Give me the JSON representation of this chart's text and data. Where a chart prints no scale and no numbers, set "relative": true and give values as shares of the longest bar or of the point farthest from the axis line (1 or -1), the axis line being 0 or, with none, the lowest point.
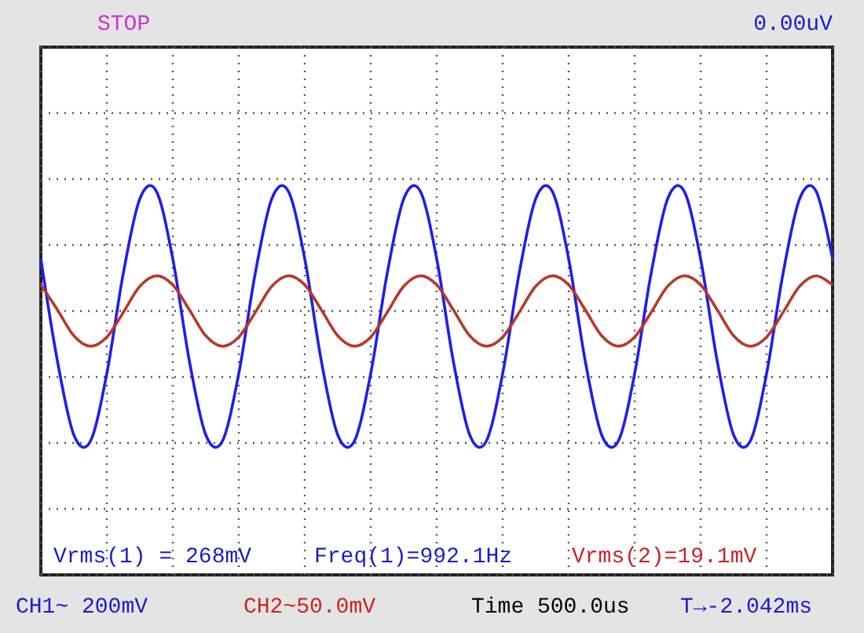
{
  "chart_data": {
    "type": "line",
    "relative": true,
    "grid": true,
    "marker": "none",
    "line_style": "solid",
    "categories": [
      null,
      null,
      null,
      null,
      null,
      null,
      null,
      null,
      null,
      null,
      null,
      null,
      null,
      null,
      null,
      null,
      null,
      null,
      null,
      null,
      null,
      null,
      null,
      null,
      null,
      null,
      null,
      null,
      null,
      null,
      null,
      null,
      null,
      null,
      null,
      null,
      null,
      null,
      null,
      null,
      null,
      null,
      null,
      null,
      null,
      null,
      null,
      null,
      null
    ],
    "series": [
      {
        "color": "#1f1fe8",
        "values": [
          0.4,
          -0.38,
          -0.95,
          -1,
          -0.48,
          0.29,
          0.86,
          0.92,
          0.4,
          -0.38,
          -0.95,
          -1,
          -0.48,
          0.29,
          0.86,
          0.92,
          0.4,
          -0.38,
          -0.95,
          -1,
          -0.48,
          0.29,
          0.86,
          0.92,
          0.4,
          -0.38,
          -0.95,
          -1,
          -0.48,
          0.29,
          0.86,
          0.92,
          0.4,
          -0.38,
          -0.95,
          -1,
          -0.48,
          0.29,
          0.86,
          0.92,
          0.4,
          -0.38,
          -0.95,
          -1,
          -0.48,
          0.29,
          0.86,
          0.92,
          0.4
        ]
      },
      {
        "color": "#b8382a",
        "values": [
          0.2,
          0.01,
          -0.19,
          -0.27,
          -0.2,
          -0.01,
          0.19,
          0.27,
          0.2,
          0.01,
          -0.19,
          -0.27,
          -0.2,
          -0.01,
          0.19,
          0.27,
          0.2,
          0.01,
          -0.19,
          -0.27,
          -0.2,
          -0.01,
          0.19,
          0.27,
          0.2,
          0.01,
          -0.19,
          -0.27,
          -0.2,
          -0.01,
          0.19,
          0.27,
          0.2,
          0.01,
          -0.19,
          -0.27,
          -0.2,
          -0.01,
          0.19,
          0.27,
          0.2,
          0.01,
          -0.19,
          -0.27,
          -0.2,
          -0.01,
          0.19,
          0.27,
          0.2
        ]
      }
    ],
    "annotations": [
      "STOP",
      "0.00uV",
      "Vrms(1) = 268mV",
      "Freq(1)=992.1Hz",
      "Vrms(2)=19.1mV",
      "CH1~ 200mV",
      "CH2~50.0mV",
      "Time 500.0us",
      "T→-2.042ms"
    ]
  }
}
